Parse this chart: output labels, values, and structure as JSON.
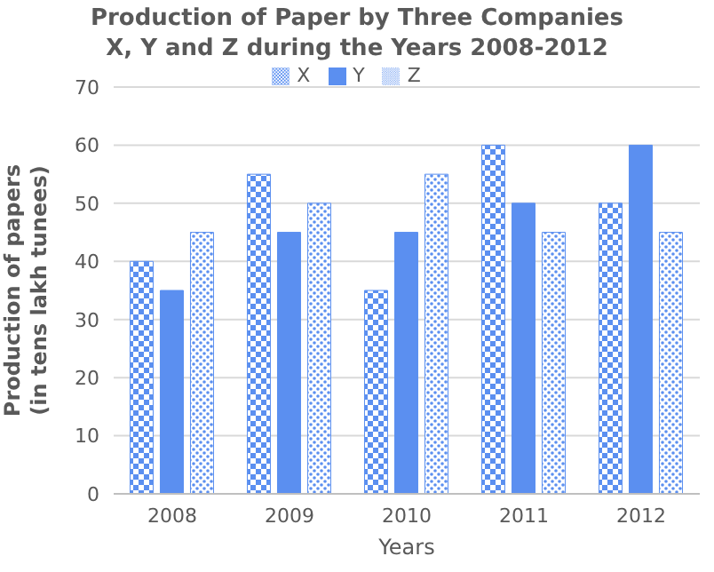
{
  "chart_data": {
    "type": "bar",
    "title": "Production of Paper by Three Companies\nX, Y and Z during the Years 2008-2012",
    "xlabel": "Years",
    "ylabel": "Production of papers\n(in tens lakh tunees)",
    "categories": [
      "2008",
      "2009",
      "2010",
      "2011",
      "2012"
    ],
    "series": [
      {
        "name": "X",
        "color": "#5b8ff0",
        "values": [
          40,
          55,
          35,
          60,
          50
        ]
      },
      {
        "name": "Y",
        "color": "#5b8ff0",
        "values": [
          35,
          45,
          45,
          50,
          60
        ]
      },
      {
        "name": "Z",
        "color": "#5b8ff0",
        "values": [
          45,
          50,
          55,
          45,
          45
        ]
      }
    ],
    "ylim": [
      0,
      70
    ],
    "yticks": [
      0,
      10,
      20,
      30,
      40,
      50,
      60,
      70
    ],
    "grid": "y",
    "legend": "top"
  }
}
